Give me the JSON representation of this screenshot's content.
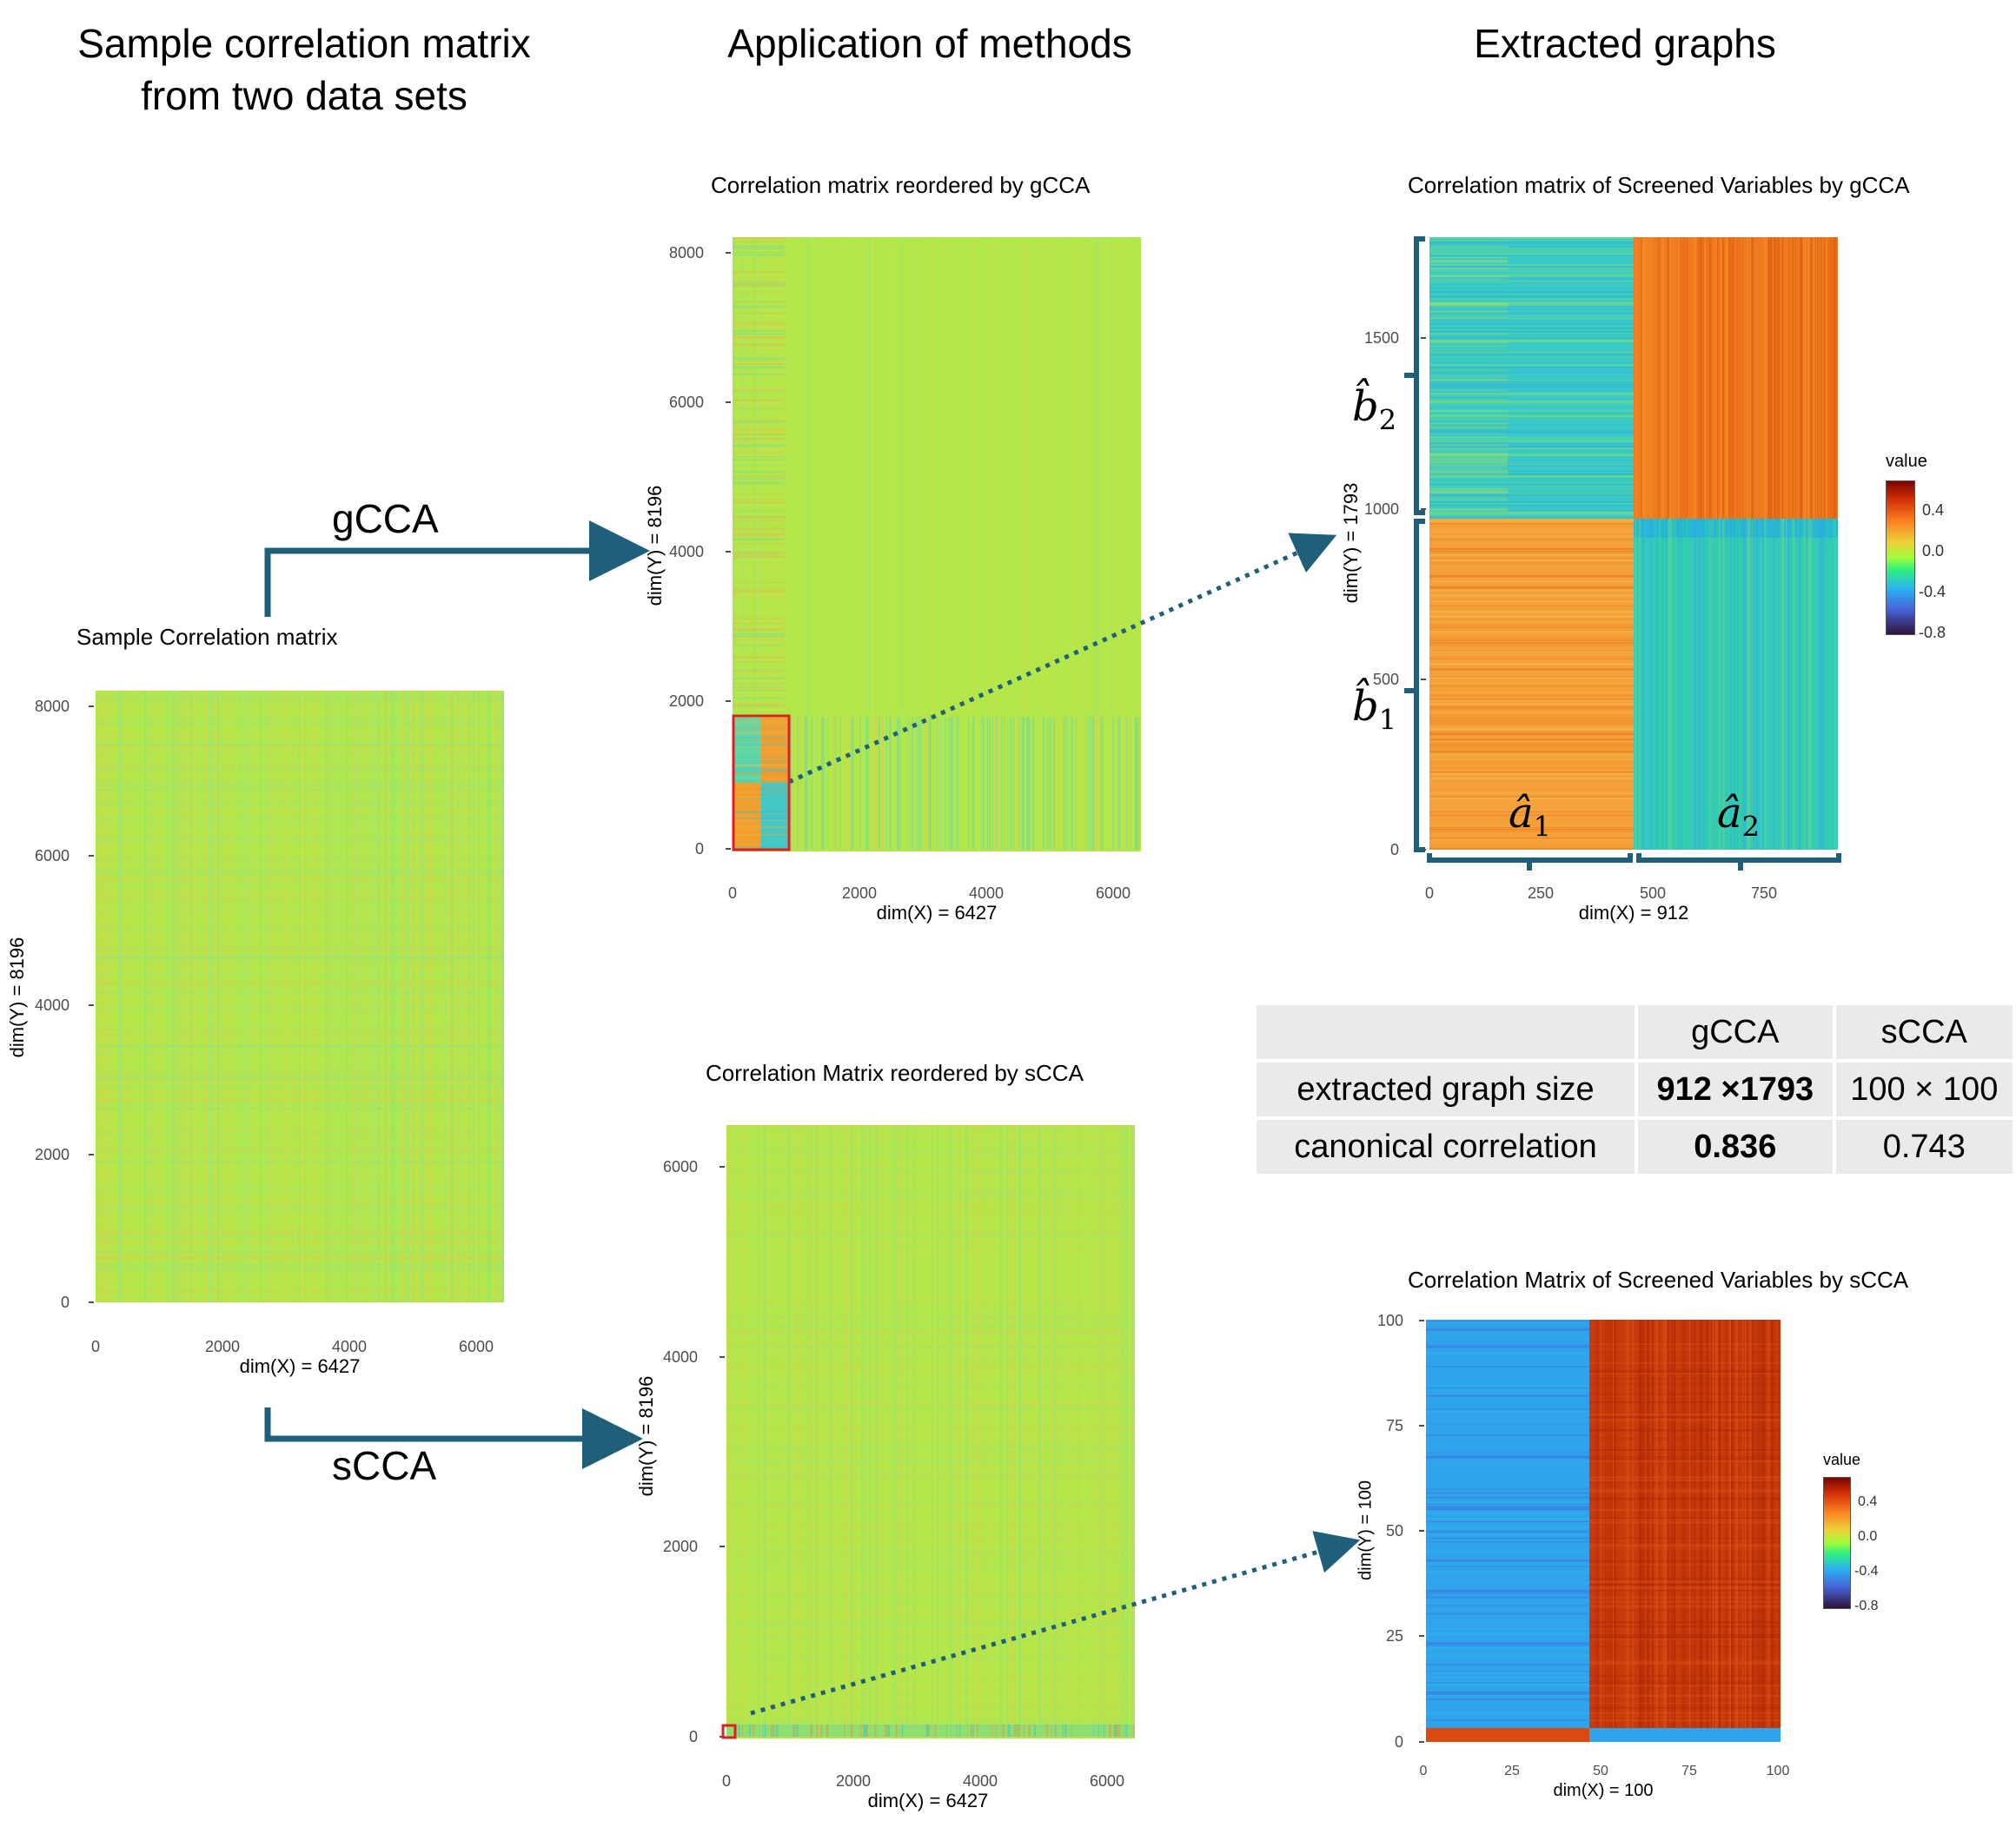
{
  "headers": {
    "col1_line1": "Sample correlation matrix",
    "col1_line2": "from two data sets",
    "col2": "Application of methods",
    "col3": "Extracted graphs"
  },
  "methods": {
    "gcca": "gCCA",
    "scca": "sCCA"
  },
  "colors": {
    "arrow": "#1f5f7a",
    "highlight_box": "#e02020",
    "table_bg": "#e8eaec"
  },
  "plots": {
    "sample": {
      "title": "Sample Correlation matrix",
      "xlabel": "dim(X) = 6427",
      "ylabel": "dim(Y) = 8196",
      "yticks": [
        "8000",
        "6000",
        "4000",
        "2000",
        "0"
      ],
      "xticks": [
        "0",
        "2000",
        "4000",
        "6000"
      ]
    },
    "gcca_full": {
      "title": "Correlation matrix reordered by gCCA",
      "xlabel": "dim(X) = 6427",
      "ylabel": "dim(Y) = 8196",
      "yticks": [
        "8000",
        "6000",
        "4000",
        "2000",
        "0"
      ],
      "xticks": [
        "0",
        "2000",
        "4000",
        "6000"
      ]
    },
    "scca_full": {
      "title": "Correlation Matrix reordered by sCCA",
      "xlabel": "dim(X) = 6427",
      "ylabel": "dim(Y) = 8196",
      "yticks": [
        "6000",
        "4000",
        "2000",
        "0"
      ],
      "xticks": [
        "0",
        "2000",
        "4000",
        "6000"
      ]
    },
    "gcca_screened": {
      "title": "Correlation matrix of Screened Variables by gCCA",
      "xlabel": "dim(X) = 912",
      "ylabel": "dim(Y) = 1793",
      "yticks": [
        "1500",
        "1000",
        "500",
        "0"
      ],
      "xticks": [
        "0",
        "250",
        "500",
        "750"
      ],
      "legend_title": "value",
      "legend_ticks": [
        "0.4",
        "0.0",
        "-0.4",
        "-0.8"
      ],
      "braces": {
        "b2": "b̂",
        "b2_sub": "2",
        "b1": "b̂",
        "b1_sub": "1",
        "a1": "â",
        "a1_sub": "1",
        "a2": "â",
        "a2_sub": "2"
      }
    },
    "scca_screened": {
      "title": "Correlation Matrix of Screened Variables by sCCA",
      "xlabel": "dim(X) = 100",
      "ylabel": "dim(Y) = 100",
      "yticks": [
        "100",
        "75",
        "50",
        "25",
        "0"
      ],
      "xticks": [
        "0",
        "25",
        "50",
        "75",
        "100"
      ],
      "legend_title": "value",
      "legend_ticks": [
        "0.4",
        "0.0",
        "-0.4",
        "-0.8"
      ]
    }
  },
  "table": {
    "header": [
      "",
      "gCCA",
      "sCCA"
    ],
    "rows": [
      {
        "label": "extracted graph size",
        "gcca": "912 ×1793",
        "scca": "100 × 100"
      },
      {
        "label": "canonical correlation",
        "gcca": "0.836",
        "scca": "0.743"
      }
    ]
  }
}
